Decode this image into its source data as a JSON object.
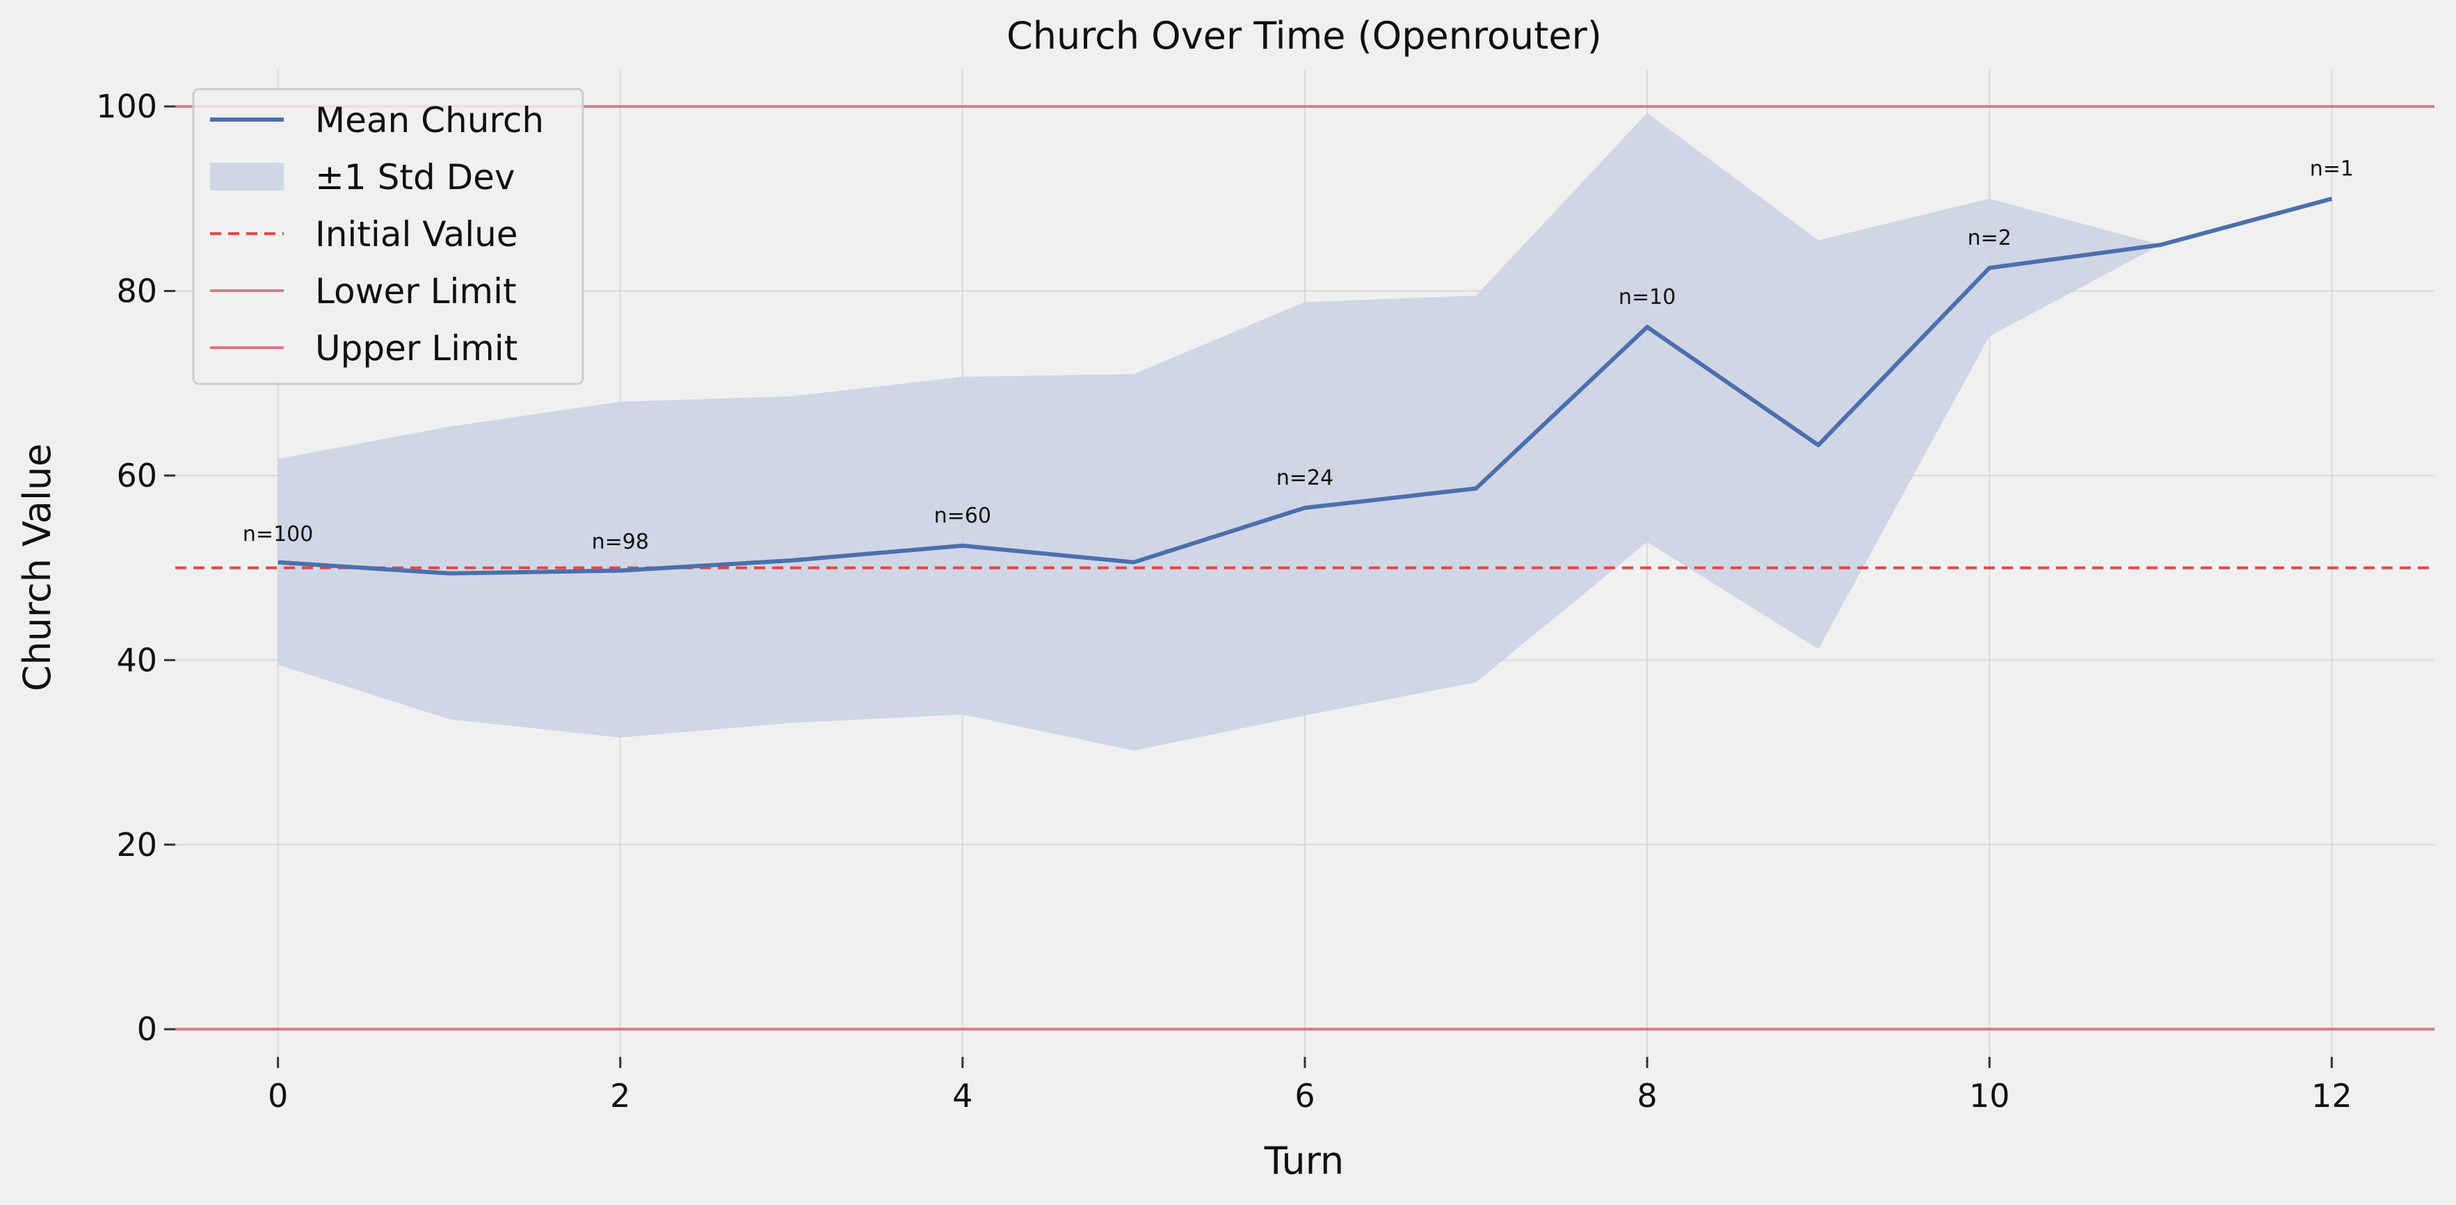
{
  "chart_data": {
    "type": "line",
    "title": "Church Over Time (Openrouter)",
    "xlabel": "Turn",
    "ylabel": "Church Value",
    "xlim": [
      -0.6,
      12.6
    ],
    "ylim": [
      -3,
      104
    ],
    "xticks": [
      0,
      2,
      4,
      6,
      8,
      10,
      12
    ],
    "yticks": [
      0,
      20,
      40,
      60,
      80,
      100
    ],
    "grid": true,
    "legend_position": "top-left",
    "series": [
      {
        "name": "Mean Church",
        "type": "line",
        "color": "#4c6fad",
        "x": [
          0,
          1,
          2,
          3,
          4,
          5,
          6,
          7,
          8,
          9,
          10,
          11,
          12
        ],
        "y": [
          50.6,
          49.4,
          49.7,
          50.8,
          52.4,
          50.6,
          56.5,
          58.6,
          76.1,
          63.3,
          82.5,
          85.0,
          90.0
        ]
      },
      {
        "name": "±1 Std Dev",
        "type": "band",
        "color": "#c8d0e2",
        "x": [
          0,
          1,
          2,
          3,
          4,
          5,
          6,
          7,
          8,
          9,
          10,
          11,
          12
        ],
        "lower": [
          39.5,
          33.6,
          31.6,
          33.2,
          34.1,
          30.2,
          34.0,
          37.6,
          52.8,
          41.2,
          75.1,
          85.0,
          90.0
        ],
        "upper": [
          61.8,
          65.3,
          68.0,
          68.6,
          70.7,
          71.0,
          78.8,
          79.5,
          99.3,
          85.5,
          90.0,
          85.0,
          90.0
        ]
      },
      {
        "name": "Initial Value",
        "type": "hline",
        "y": 50,
        "color": "#e04848",
        "style": "dashed"
      },
      {
        "name": "Lower Limit",
        "type": "hline",
        "y": 0,
        "color": "#d97a8c",
        "style": "solid"
      },
      {
        "name": "Upper Limit",
        "type": "hline",
        "y": 100,
        "color": "#d97a8c",
        "style": "solid"
      }
    ],
    "annotations": [
      {
        "x": 0,
        "y": 52.9,
        "text": "n=100"
      },
      {
        "x": 2,
        "y": 52.1,
        "text": "n=98"
      },
      {
        "x": 4,
        "y": 54.9,
        "text": "n=60"
      },
      {
        "x": 6,
        "y": 59.0,
        "text": "n=24"
      },
      {
        "x": 8,
        "y": 78.6,
        "text": "n=10"
      },
      {
        "x": 10,
        "y": 85.0,
        "text": "n=2"
      },
      {
        "x": 12,
        "y": 92.5,
        "text": "n=1"
      }
    ]
  }
}
